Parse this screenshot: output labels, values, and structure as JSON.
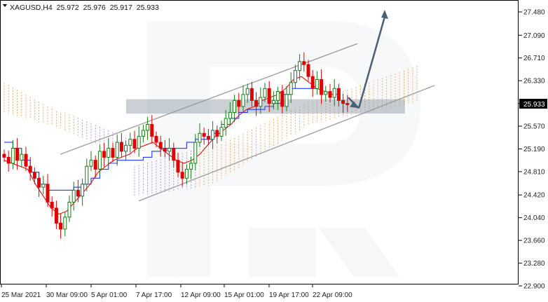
{
  "header": {
    "symbol": "XAGUSD,H4",
    "open": "25.972",
    "high": "25.976",
    "low": "25.917",
    "close": "25.933"
  },
  "chart_data": {
    "type": "candlestick",
    "ylim": [
      22.9,
      27.6
    ],
    "y_ticks": [
      "27.480",
      "27.090",
      "26.710",
      "26.330",
      "25.950",
      "25.570",
      "25.190",
      "24.810",
      "24.420",
      "24.040",
      "23.660",
      "23.280",
      "22.900"
    ],
    "x_ticks": [
      "25 Mar 2021",
      "30 Mar 09:00",
      "5 Apr 01:00",
      "7 Apr 17:00",
      "12 Apr 09:00",
      "15 Apr 01:00",
      "19 Apr 17:00",
      "22 Apr 09:00"
    ],
    "current_price": "25.933",
    "colors": {
      "bull": "#1a7a1a",
      "bear": "#e00000",
      "kijun": "#1f3cff",
      "tenkan": "#e00000",
      "cloud_bull": "#f5a35c",
      "cloud_bear": "#b98ad6",
      "channel": "#9a9a9a",
      "arrow": "#4a6076",
      "zone": "#8a97a3"
    },
    "closes": [
      25.05,
      24.95,
      25.2,
      25.0,
      25.1,
      24.9,
      24.8,
      24.7,
      24.55,
      24.6,
      24.3,
      24.2,
      23.95,
      23.85,
      24.05,
      24.3,
      24.5,
      24.4,
      24.6,
      24.9,
      25.0,
      24.85,
      25.15,
      25.05,
      25.2,
      25.05,
      25.3,
      25.15,
      25.25,
      25.35,
      25.2,
      25.4,
      25.5,
      25.6,
      25.4,
      25.3,
      25.2,
      25.15,
      25.2,
      25.0,
      24.8,
      24.7,
      24.85,
      24.95,
      25.3,
      25.45,
      25.4,
      25.35,
      25.5,
      25.4,
      25.55,
      25.7,
      25.8,
      26.0,
      25.9,
      26.1,
      26.2,
      26.0,
      25.9,
      26.05,
      26.2,
      25.95,
      26.0,
      26.15,
      25.9,
      26.1,
      26.3,
      26.5,
      26.65,
      26.6,
      26.4,
      26.2,
      26.35,
      26.1,
      26.15,
      26.05,
      26.2,
      26.0,
      25.95,
      25.93
    ],
    "ichimoku": {
      "tenkan": [
        25.0,
        24.95,
        24.9,
        24.85,
        24.6,
        24.4,
        24.2,
        24.1,
        24.15,
        24.3,
        24.45,
        24.6,
        24.8,
        24.9,
        25.0,
        25.05,
        25.1,
        25.2,
        25.25,
        25.3,
        25.2,
        25.1,
        25.0,
        24.95,
        25.0,
        25.1,
        25.25,
        25.4,
        25.5,
        25.6,
        25.75,
        25.85,
        25.9,
        26.0,
        26.05,
        26.1,
        26.2,
        26.35,
        26.4,
        26.3,
        26.2,
        26.15,
        26.1,
        26.1
      ],
      "kijun": [
        25.3,
        25.2,
        25.0,
        24.8,
        24.6,
        24.5,
        24.5,
        24.5,
        24.55,
        24.6,
        24.7,
        24.85,
        24.95,
        25.0,
        25.0,
        25.0,
        25.05,
        25.15,
        25.2,
        25.2,
        25.2,
        25.3,
        25.35,
        25.35,
        25.45,
        25.6,
        25.7,
        25.8,
        25.85,
        25.85,
        25.9,
        25.95,
        26.1,
        26.2,
        26.2,
        26.2,
        26.2
      ]
    }
  }
}
